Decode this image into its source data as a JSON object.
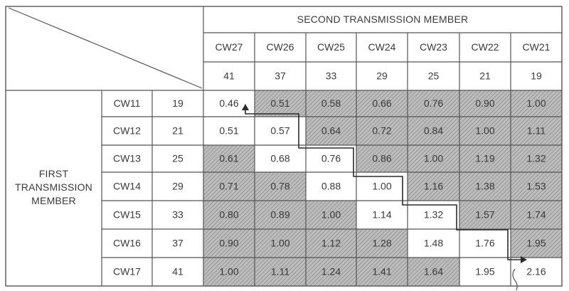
{
  "header": {
    "top_title": "SECOND TRANSMISSION MEMBER"
  },
  "side": {
    "label_lines": [
      "FIRST",
      "TRANSMISSION",
      "MEMBER"
    ]
  },
  "columns": [
    {
      "name": "CW27",
      "teeth": "41"
    },
    {
      "name": "CW26",
      "teeth": "37"
    },
    {
      "name": "CW25",
      "teeth": "33"
    },
    {
      "name": "CW24",
      "teeth": "29"
    },
    {
      "name": "CW23",
      "teeth": "25"
    },
    {
      "name": "CW22",
      "teeth": "21"
    },
    {
      "name": "CW21",
      "teeth": "19"
    }
  ],
  "rows": [
    {
      "name": "CW11",
      "teeth": "19",
      "values": [
        "0.46",
        "0.51",
        "0.58",
        "0.66",
        "0.76",
        "0.90",
        "1.00"
      ],
      "shaded": [
        false,
        true,
        true,
        true,
        true,
        true,
        true
      ]
    },
    {
      "name": "CW12",
      "teeth": "21",
      "values": [
        "0.51",
        "0.57",
        "0.64",
        "0.72",
        "0.84",
        "1.00",
        "1.11"
      ],
      "shaded": [
        false,
        false,
        true,
        true,
        true,
        true,
        true
      ]
    },
    {
      "name": "CW13",
      "teeth": "25",
      "values": [
        "0.61",
        "0.68",
        "0.76",
        "0.86",
        "1.00",
        "1.19",
        "1.32"
      ],
      "shaded": [
        true,
        false,
        false,
        true,
        true,
        true,
        true
      ]
    },
    {
      "name": "CW14",
      "teeth": "29",
      "values": [
        "0.71",
        "0.78",
        "0.88",
        "1.00",
        "1.16",
        "1.38",
        "1.53"
      ],
      "shaded": [
        true,
        true,
        false,
        false,
        true,
        true,
        true
      ]
    },
    {
      "name": "CW15",
      "teeth": "33",
      "values": [
        "0.80",
        "0.89",
        "1.00",
        "1.14",
        "1.32",
        "1.57",
        "1.74"
      ],
      "shaded": [
        true,
        true,
        true,
        false,
        false,
        true,
        true
      ]
    },
    {
      "name": "CW16",
      "teeth": "37",
      "values": [
        "0.90",
        "1.00",
        "1.12",
        "1.28",
        "1.48",
        "1.76",
        "1.95"
      ],
      "shaded": [
        true,
        true,
        true,
        true,
        false,
        false,
        true
      ]
    },
    {
      "name": "CW17",
      "teeth": "41",
      "values": [
        "1.00",
        "1.11",
        "1.24",
        "1.41",
        "1.64",
        "1.95",
        "2.16"
      ],
      "shaded": [
        true,
        true,
        true,
        true,
        true,
        false,
        false
      ]
    }
  ],
  "colors": {
    "line": "#555555",
    "shade": "#b9b9b9",
    "hatch": "#8a8a8a",
    "text": "#3a3a3a"
  }
}
